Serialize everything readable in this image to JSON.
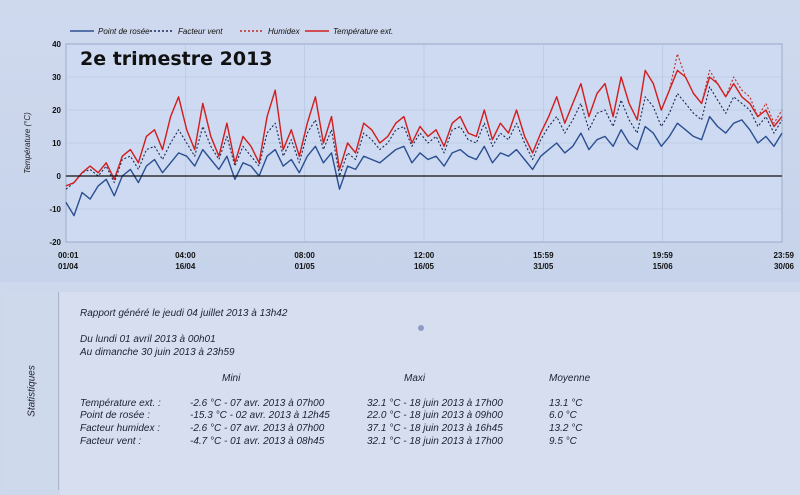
{
  "chart_data": {
    "type": "line",
    "title": "2e trimestre 2013",
    "ylabel": "Température (°C)",
    "ylim": [
      -20,
      40
    ],
    "yticks": [
      -20,
      -10,
      0,
      10,
      20,
      30,
      40
    ],
    "x_ticks": [
      {
        "time": "00:01",
        "date": "01/04"
      },
      {
        "time": "04:00",
        "date": "16/04"
      },
      {
        "time": "08:00",
        "date": "01/05"
      },
      {
        "time": "12:00",
        "date": "16/05"
      },
      {
        "time": "15:59",
        "date": "31/05"
      },
      {
        "time": "19:59",
        "date": "15/06"
      },
      {
        "time": "23:59",
        "date": "30/06"
      }
    ],
    "x_range": [
      "2013-04-01",
      "2013-06-30"
    ],
    "legend_position": "top-left",
    "series": [
      {
        "name": "Point de rosée",
        "color": "#2b4f91",
        "style": "solid",
        "values": [
          -8,
          -12,
          -5,
          -7,
          -3,
          -1,
          -6,
          0,
          2,
          -2,
          3,
          5,
          1,
          4,
          7,
          6,
          3,
          8,
          5,
          2,
          6,
          -1,
          4,
          3,
          0,
          6,
          8,
          3,
          5,
          1,
          6,
          9,
          4,
          7,
          -4,
          3,
          2,
          6,
          5,
          4,
          6,
          8,
          9,
          4,
          7,
          5,
          6,
          3,
          7,
          8,
          6,
          5,
          9,
          4,
          7,
          6,
          8,
          5,
          2,
          6,
          8,
          10,
          7,
          9,
          13,
          8,
          11,
          12,
          9,
          14,
          10,
          8,
          15,
          13,
          9,
          12,
          16,
          14,
          12,
          11,
          18,
          15,
          13,
          16,
          17,
          14,
          10,
          12,
          9,
          13
        ]
      },
      {
        "name": "Facteur vent",
        "color": "#1b2a55",
        "style": "dotted",
        "values": [
          -4,
          -2,
          1,
          2,
          0,
          3,
          -2,
          5,
          6,
          2,
          8,
          9,
          5,
          10,
          14,
          10,
          6,
          15,
          9,
          5,
          12,
          3,
          9,
          6,
          3,
          13,
          16,
          6,
          11,
          4,
          13,
          17,
          8,
          14,
          0,
          7,
          5,
          13,
          11,
          8,
          10,
          14,
          15,
          9,
          13,
          10,
          12,
          7,
          14,
          15,
          11,
          10,
          16,
          9,
          13,
          11,
          16,
          10,
          5,
          11,
          15,
          18,
          13,
          17,
          22,
          14,
          19,
          20,
          15,
          23,
          17,
          13,
          24,
          21,
          15,
          19,
          25,
          22,
          19,
          17,
          27,
          23,
          19,
          24,
          22,
          20,
          15,
          18,
          13,
          17
        ]
      },
      {
        "name": "Humidex",
        "color": "#c02a2a",
        "style": "dotted",
        "values": [
          -3,
          -2,
          1,
          3,
          1,
          4,
          -1,
          6,
          8,
          4,
          12,
          14,
          8,
          18,
          24,
          14,
          8,
          22,
          12,
          6,
          16,
          4,
          12,
          9,
          4,
          18,
          26,
          8,
          14,
          6,
          16,
          24,
          10,
          18,
          2,
          10,
          7,
          16,
          14,
          10,
          12,
          16,
          18,
          10,
          15,
          12,
          14,
          9,
          16,
          18,
          13,
          12,
          20,
          11,
          16,
          13,
          20,
          12,
          7,
          13,
          18,
          24,
          16,
          22,
          28,
          18,
          25,
          28,
          18,
          30,
          22,
          17,
          32,
          28,
          20,
          26,
          37,
          30,
          25,
          22,
          32,
          28,
          24,
          30,
          26,
          24,
          18,
          22,
          16,
          20
        ]
      },
      {
        "name": "Température ext.",
        "color": "#d11f1f",
        "style": "solid",
        "values": [
          -3,
          -2,
          1,
          3,
          1,
          4,
          -1,
          6,
          8,
          4,
          12,
          14,
          8,
          18,
          24,
          14,
          8,
          22,
          12,
          6,
          16,
          4,
          12,
          9,
          4,
          18,
          26,
          8,
          14,
          6,
          16,
          24,
          10,
          18,
          2,
          10,
          7,
          16,
          14,
          10,
          12,
          16,
          18,
          10,
          15,
          12,
          14,
          9,
          16,
          18,
          13,
          12,
          20,
          11,
          16,
          13,
          20,
          12,
          7,
          13,
          18,
          24,
          16,
          22,
          28,
          18,
          25,
          28,
          18,
          30,
          22,
          17,
          32,
          28,
          20,
          26,
          32,
          30,
          25,
          22,
          30,
          28,
          24,
          28,
          24,
          22,
          18,
          20,
          15,
          18
        ]
      }
    ]
  },
  "stats": {
    "tab_label": "Statistiques",
    "report_line": "Rapport généré le jeudi 04 juillet 2013 à 13h42",
    "period_from": "Du lundi 01 avril 2013 à 00h01",
    "period_to": "Au dimanche 30 juin 2013 à 23h59",
    "col_min": "Mini",
    "col_max": "Maxi",
    "col_avg": "Moyenne",
    "rows": [
      {
        "label": "Température ext. :",
        "min": "-2.6 °C - 07 avr. 2013 à 07h00",
        "max": "32.1 °C - 18 juin 2013 à 17h00",
        "avg": "13.1 °C"
      },
      {
        "label": "Point de rosée :",
        "min": "-15.3 °C - 02 avr. 2013 à 12h45",
        "max": "22.0 °C - 18 juin 2013 à 09h00",
        "avg": "6.0 °C"
      },
      {
        "label": "Facteur humidex :",
        "min": "-2.6 °C - 07 avr. 2013 à 07h00",
        "max": "37.1 °C - 18 juin 2013 à 16h45",
        "avg": "13.2 °C"
      },
      {
        "label": "Facteur vent :",
        "min": "-4.7 °C - 01 avr. 2013 à 08h45",
        "max": "32.1 °C - 18 juin 2013 à 17h00",
        "avg": "9.5 °C"
      }
    ]
  }
}
